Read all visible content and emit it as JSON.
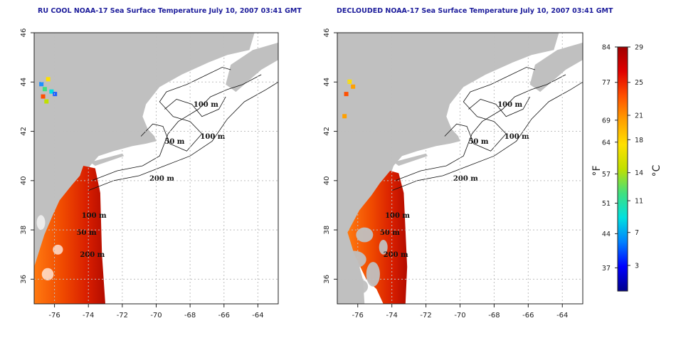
{
  "panels": [
    {
      "title": "RU COOL NOAA-17 Sea Surface Temperature July 10, 2007 03:41 GMT"
    },
    {
      "title": "DECLOUDED NOAA-17 Sea Surface Temperature July 10, 2007 03:41 GMT"
    }
  ],
  "chart_data": [
    {
      "type": "heatmap",
      "title": "RU COOL NOAA-17 Sea Surface Temperature July 10, 2007 03:41 GMT",
      "x_ticks": [
        -76,
        -74,
        -72,
        -70,
        -68,
        -66,
        -64
      ],
      "y_ticks": [
        36,
        38,
        40,
        42,
        44,
        46
      ],
      "xlim": [
        -77.2,
        -62.8
      ],
      "ylim": [
        35,
        46
      ],
      "grid": true,
      "contour_labels": [
        "100 m",
        "100 m",
        "50 m",
        "200 m",
        "50 m",
        "100 m",
        "200 m"
      ]
    },
    {
      "type": "heatmap",
      "title": "DECLOUDED NOAA-17 Sea Surface Temperature July 10, 2007 03:41 GMT",
      "x_ticks": [
        -76,
        -74,
        -72,
        -70,
        -68,
        -66,
        -64
      ],
      "y_ticks": [
        36,
        38,
        40,
        42,
        44,
        46
      ],
      "xlim": [
        -77.2,
        -62.8
      ],
      "ylim": [
        35,
        46
      ],
      "grid": true,
      "contour_labels": [
        "100 m",
        "100 m",
        "50 m",
        "200 m",
        "50 m",
        "100 m",
        "200 m"
      ]
    }
  ],
  "colorbar": {
    "fahrenheit_ticks": [
      "84",
      "77",
      "69",
      "64",
      "57",
      "51",
      "44",
      "37"
    ],
    "celsius_ticks": [
      "29",
      "25",
      "21",
      "18",
      "14",
      "11",
      "7",
      "3"
    ],
    "fahrenheit_unit": "°F",
    "celsius_unit": "°C",
    "colors": [
      "#00008b",
      "#0000ff",
      "#0080ff",
      "#00e0e0",
      "#40e080",
      "#c0e000",
      "#ffe000",
      "#ffa000",
      "#ff5000",
      "#e00000",
      "#a00000"
    ]
  },
  "colors": {
    "land": "#c0c0c0",
    "title": "#1d1d9b",
    "grid": "#bfbfbf"
  }
}
